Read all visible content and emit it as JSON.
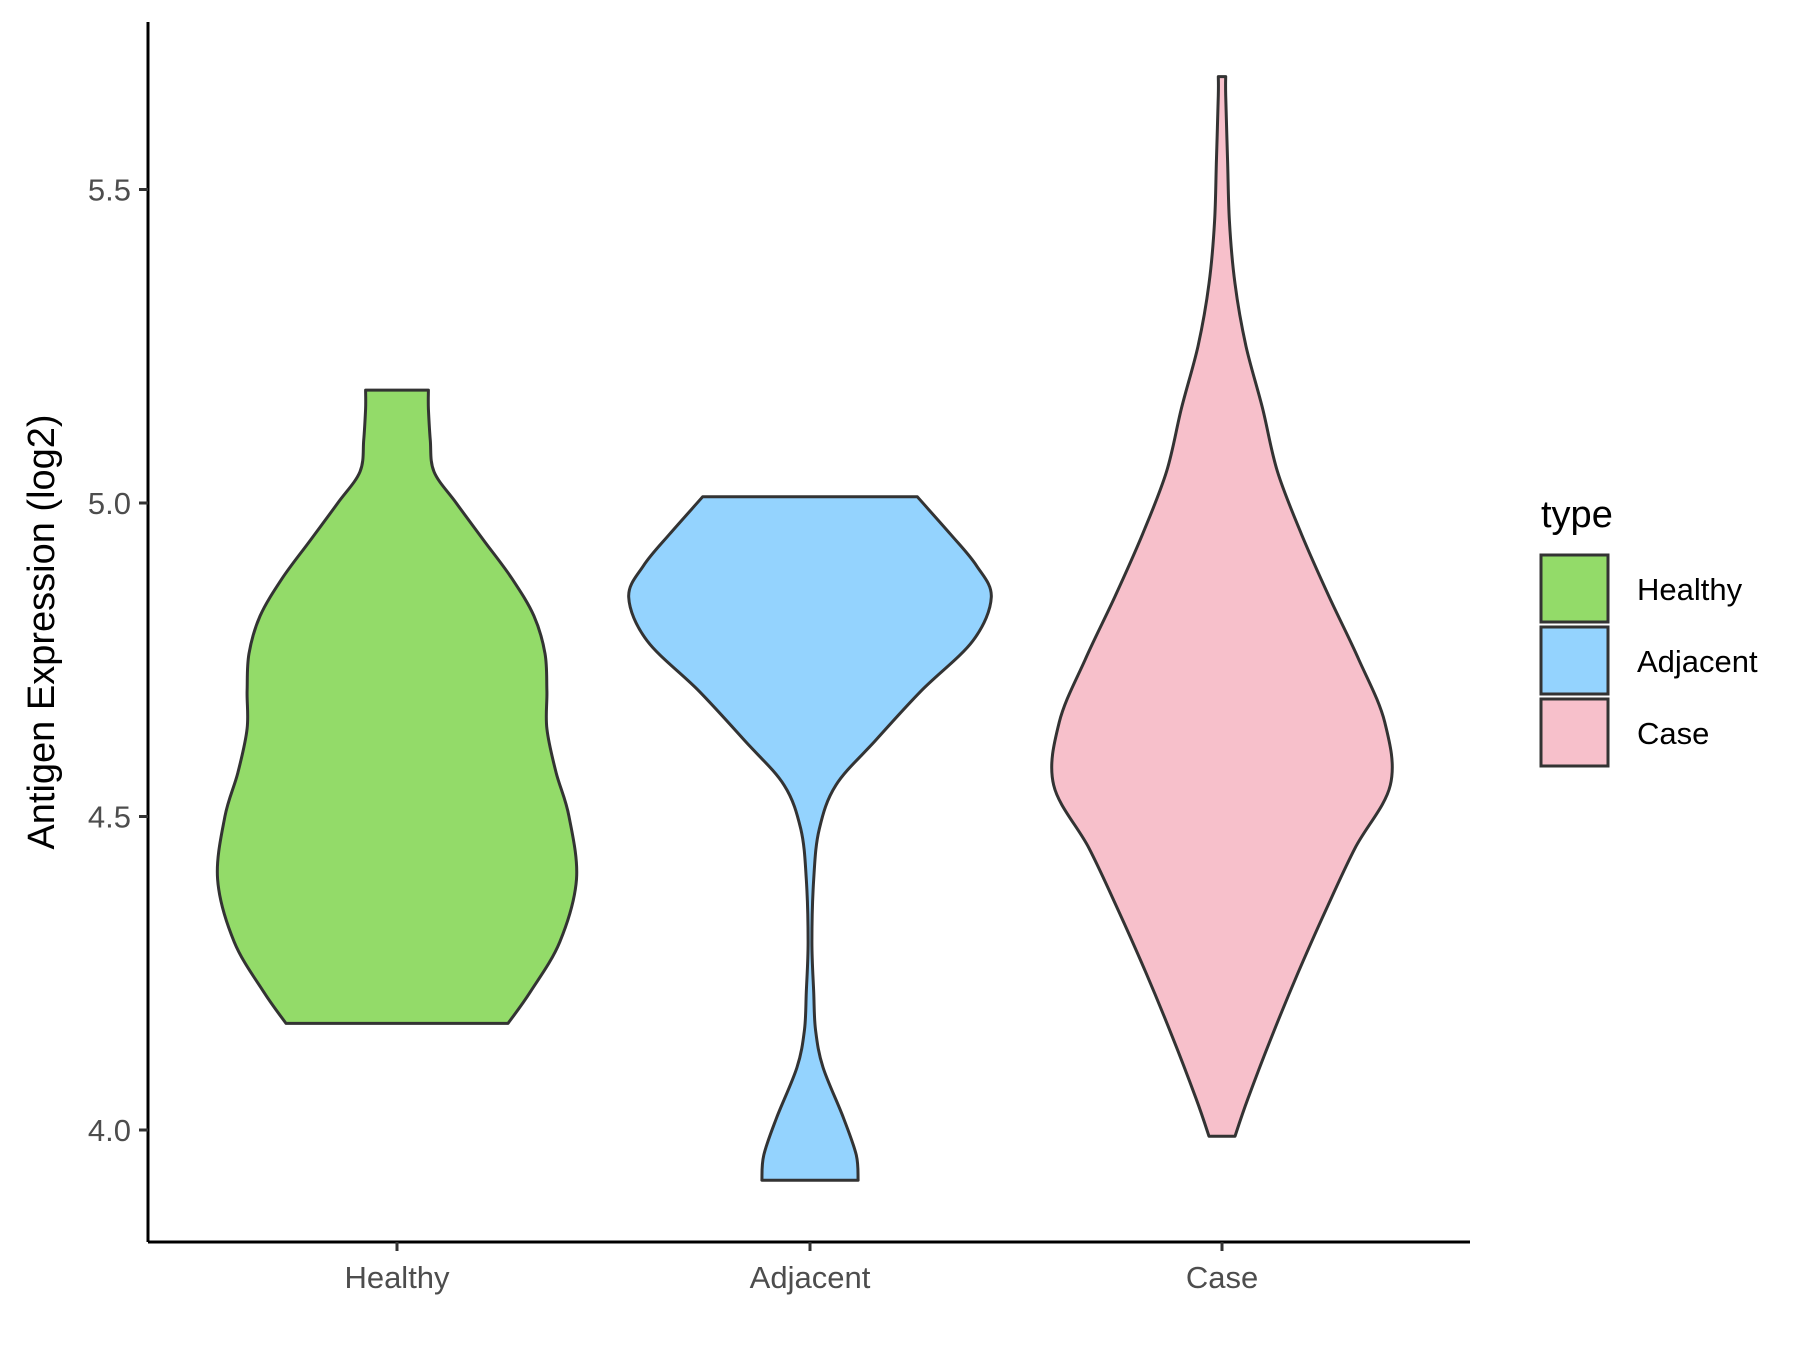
{
  "chart_data": {
    "type": "violin",
    "title": "",
    "xlabel": "",
    "ylabel": "Antigen Expression (log2)",
    "ylim": [
      3.83,
      5.78
    ],
    "y_ticks": [
      4.0,
      4.5,
      5.0,
      5.5
    ],
    "y_tick_labels": [
      "4.0",
      "4.5",
      "5.0",
      "5.5"
    ],
    "categories": [
      "Healthy",
      "Adjacent",
      "Case"
    ],
    "grid": false,
    "legend": {
      "title": "type",
      "position": "right",
      "entries": [
        {
          "label": "Healthy",
          "color": "#93DB69"
        },
        {
          "label": "Adjacent",
          "color": "#94D3FE"
        },
        {
          "label": "Case",
          "color": "#F7C0CB"
        }
      ]
    },
    "series": [
      {
        "category": "Healthy",
        "color": "#93DB69",
        "min": 4.17,
        "max": 5.18,
        "density_profile": [
          [
            4.17,
            0.6
          ],
          [
            4.22,
            0.72
          ],
          [
            4.3,
            0.88
          ],
          [
            4.4,
            0.97
          ],
          [
            4.5,
            0.93
          ],
          [
            4.57,
            0.86
          ],
          [
            4.64,
            0.81
          ],
          [
            4.7,
            0.81
          ],
          [
            4.76,
            0.8
          ],
          [
            4.82,
            0.74
          ],
          [
            4.88,
            0.62
          ],
          [
            4.94,
            0.47
          ],
          [
            5.0,
            0.32
          ],
          [
            5.05,
            0.2
          ],
          [
            5.1,
            0.18
          ],
          [
            5.15,
            0.17
          ],
          [
            5.18,
            0.17
          ]
        ]
      },
      {
        "category": "Adjacent",
        "color": "#94D3FE",
        "min": 3.92,
        "max": 5.01,
        "density_profile": [
          [
            3.92,
            0.26
          ],
          [
            3.96,
            0.25
          ],
          [
            4.02,
            0.18
          ],
          [
            4.1,
            0.07
          ],
          [
            4.16,
            0.03
          ],
          [
            4.22,
            0.02
          ],
          [
            4.3,
            0.01
          ],
          [
            4.4,
            0.02
          ],
          [
            4.48,
            0.05
          ],
          [
            4.55,
            0.14
          ],
          [
            4.62,
            0.35
          ],
          [
            4.7,
            0.6
          ],
          [
            4.78,
            0.88
          ],
          [
            4.85,
            0.98
          ],
          [
            4.9,
            0.9
          ],
          [
            4.95,
            0.76
          ],
          [
            5.01,
            0.58
          ]
        ]
      },
      {
        "category": "Case",
        "color": "#F7C0CB",
        "min": 3.99,
        "max": 5.68,
        "density_profile": [
          [
            3.99,
            0.07
          ],
          [
            4.05,
            0.14
          ],
          [
            4.15,
            0.27
          ],
          [
            4.25,
            0.41
          ],
          [
            4.35,
            0.56
          ],
          [
            4.45,
            0.72
          ],
          [
            4.55,
            0.91
          ],
          [
            4.65,
            0.88
          ],
          [
            4.75,
            0.74
          ],
          [
            4.85,
            0.58
          ],
          [
            4.95,
            0.43
          ],
          [
            5.05,
            0.3
          ],
          [
            5.15,
            0.22
          ],
          [
            5.25,
            0.13
          ],
          [
            5.35,
            0.07
          ],
          [
            5.45,
            0.04
          ],
          [
            5.55,
            0.03
          ],
          [
            5.65,
            0.02
          ],
          [
            5.68,
            0.02
          ]
        ]
      }
    ]
  }
}
